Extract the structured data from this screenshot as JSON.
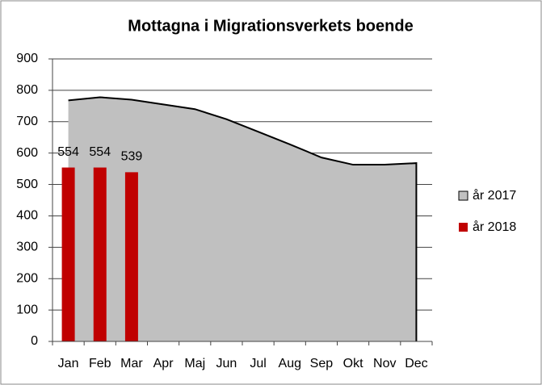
{
  "chart_data": {
    "type": "combo",
    "title": "Mottagna i Migrationsverkets boende",
    "categories": [
      "Jan",
      "Feb",
      "Mar",
      "Apr",
      "Maj",
      "Jun",
      "Jul",
      "Aug",
      "Sep",
      "Okt",
      "Nov",
      "Dec"
    ],
    "series": [
      {
        "name": "år 2017",
        "type": "area",
        "color": "#c0c0c0",
        "values": [
          768,
          778,
          770,
          755,
          740,
          708,
          668,
          628,
          586,
          563,
          563,
          568
        ]
      },
      {
        "name": "år 2018",
        "type": "bar",
        "color": "#c00000",
        "values": [
          554,
          554,
          539,
          null,
          null,
          null,
          null,
          null,
          null,
          null,
          null,
          null
        ]
      }
    ],
    "ylim": [
      0,
      900
    ],
    "yticks": [
      0,
      100,
      200,
      300,
      400,
      500,
      600,
      700,
      800,
      900
    ],
    "grid": true,
    "legend": "right"
  }
}
